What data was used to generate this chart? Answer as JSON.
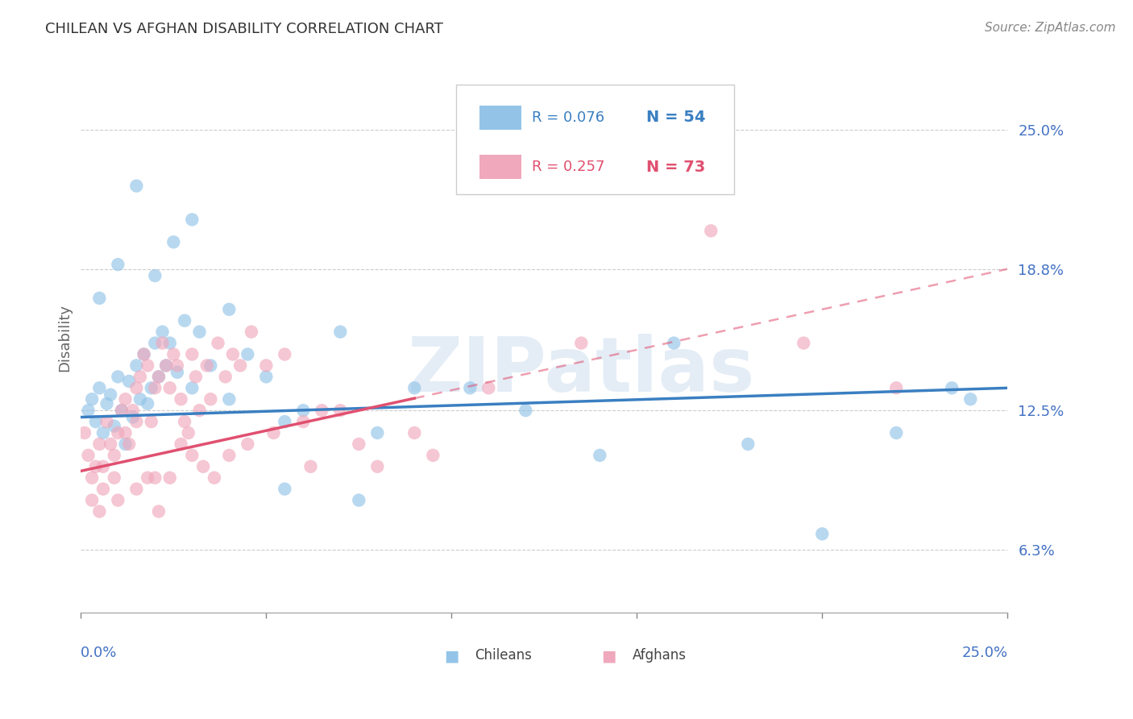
{
  "title": "CHILEAN VS AFGHAN DISABILITY CORRELATION CHART",
  "source": "Source: ZipAtlas.com",
  "ylabel": "Disability",
  "xlim": [
    0.0,
    25.0
  ],
  "ylim": [
    3.5,
    28.0
  ],
  "yticks": [
    6.3,
    12.5,
    18.8,
    25.0
  ],
  "ytick_labels": [
    "6.3%",
    "12.5%",
    "18.8%",
    "25.0%"
  ],
  "xtick_positions": [
    0,
    5,
    10,
    15,
    20,
    25
  ],
  "chilean_color": "#93c4e8",
  "afghan_color": "#f0a8bc",
  "line_chilean_color": "#3a7fc1",
  "line_afghan_color": "#e05070",
  "watermark": "ZIPatlas",
  "legend": {
    "R_chilean": "R = 0.076",
    "N_chilean": "N = 54",
    "R_afghan": "R = 0.257",
    "N_afghan": "N = 73"
  },
  "blue_line_x0": 0.0,
  "blue_line_y0": 12.2,
  "blue_line_x1": 25.0,
  "blue_line_y1": 13.5,
  "pink_line_x0": 0.0,
  "pink_line_y0": 9.8,
  "pink_line_x1": 25.0,
  "pink_line_y1": 18.8,
  "pink_solid_xmax": 9.0,
  "chilean_x": [
    0.2,
    0.3,
    0.4,
    0.5,
    0.6,
    0.7,
    0.8,
    0.9,
    1.0,
    1.1,
    1.2,
    1.3,
    1.4,
    1.5,
    1.6,
    1.7,
    1.8,
    1.9,
    2.0,
    2.1,
    2.2,
    2.3,
    2.4,
    2.6,
    2.8,
    3.0,
    3.2,
    3.5,
    4.0,
    4.5,
    5.0,
    5.5,
    6.0,
    7.0,
    8.0,
    9.0,
    10.5,
    12.0,
    14.0,
    16.0,
    18.0,
    20.0,
    22.0,
    0.5,
    1.0,
    1.5,
    2.0,
    2.5,
    3.0,
    4.0,
    5.5,
    7.5,
    23.5,
    24.0
  ],
  "chilean_y": [
    12.5,
    13.0,
    12.0,
    13.5,
    11.5,
    12.8,
    13.2,
    11.8,
    14.0,
    12.5,
    11.0,
    13.8,
    12.2,
    14.5,
    13.0,
    15.0,
    12.8,
    13.5,
    15.5,
    14.0,
    16.0,
    14.5,
    15.5,
    14.2,
    16.5,
    13.5,
    16.0,
    14.5,
    13.0,
    15.0,
    14.0,
    12.0,
    12.5,
    16.0,
    11.5,
    13.5,
    13.5,
    12.5,
    10.5,
    15.5,
    11.0,
    7.0,
    11.5,
    17.5,
    19.0,
    22.5,
    18.5,
    20.0,
    21.0,
    17.0,
    9.0,
    8.5,
    13.5,
    13.0
  ],
  "afghan_x": [
    0.1,
    0.2,
    0.3,
    0.4,
    0.5,
    0.6,
    0.7,
    0.8,
    0.9,
    1.0,
    1.1,
    1.2,
    1.3,
    1.4,
    1.5,
    1.6,
    1.7,
    1.8,
    1.9,
    2.0,
    2.1,
    2.2,
    2.3,
    2.4,
    2.5,
    2.6,
    2.7,
    2.8,
    2.9,
    3.0,
    3.1,
    3.2,
    3.4,
    3.5,
    3.7,
    3.9,
    4.1,
    4.3,
    4.6,
    5.0,
    5.5,
    6.0,
    6.5,
    7.0,
    8.0,
    9.5,
    0.3,
    0.6,
    0.9,
    1.2,
    1.5,
    1.8,
    2.1,
    2.4,
    2.7,
    3.0,
    3.3,
    3.6,
    4.0,
    4.5,
    5.2,
    6.2,
    7.5,
    9.0,
    11.0,
    13.5,
    17.0,
    19.5,
    22.0,
    0.5,
    1.0,
    1.5,
    2.0
  ],
  "afghan_y": [
    11.5,
    10.5,
    9.5,
    10.0,
    11.0,
    10.0,
    12.0,
    11.0,
    9.5,
    11.5,
    12.5,
    13.0,
    11.0,
    12.5,
    13.5,
    14.0,
    15.0,
    14.5,
    12.0,
    13.5,
    14.0,
    15.5,
    14.5,
    13.5,
    15.0,
    14.5,
    13.0,
    12.0,
    11.5,
    15.0,
    14.0,
    12.5,
    14.5,
    13.0,
    15.5,
    14.0,
    15.0,
    14.5,
    16.0,
    14.5,
    15.0,
    12.0,
    12.5,
    12.5,
    10.0,
    10.5,
    8.5,
    9.0,
    10.5,
    11.5,
    12.0,
    9.5,
    8.0,
    9.5,
    11.0,
    10.5,
    10.0,
    9.5,
    10.5,
    11.0,
    11.5,
    10.0,
    11.0,
    11.5,
    13.5,
    15.5,
    20.5,
    15.5,
    13.5,
    8.0,
    8.5,
    9.0,
    9.5
  ]
}
